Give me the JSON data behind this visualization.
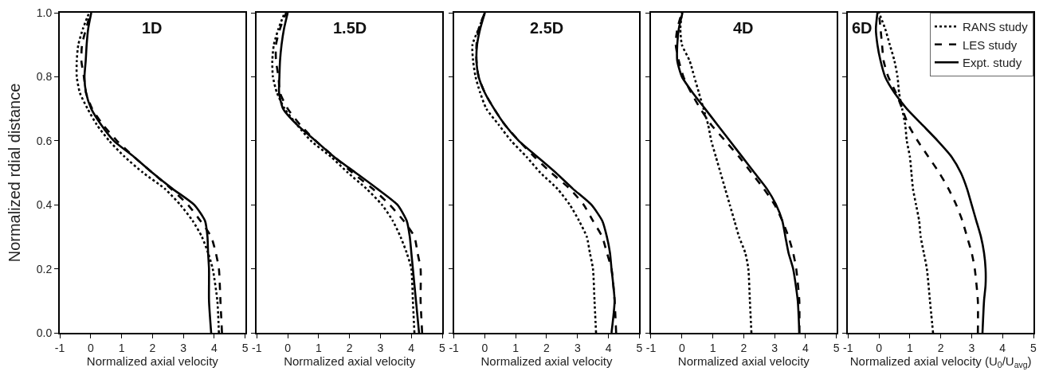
{
  "chart_data": [
    {
      "type": "line",
      "title": "1D",
      "xlabel": "Normalized axial velocity",
      "ylabel": "Normalized rdial distance",
      "xlim": [
        -1,
        5
      ],
      "xticks": [
        -1,
        0,
        1,
        2,
        3,
        4,
        5
      ],
      "ylim": [
        0,
        1
      ],
      "yticks": [
        {
          "value": 0,
          "label": "0.0"
        },
        0.2,
        0.4,
        0.6,
        0.8,
        {
          "value": 1,
          "label": "1.0"
        }
      ],
      "legend": false,
      "series": [
        {
          "color": "#000000",
          "line_style": "dotted",
          "x": [
            4.15,
            4.1,
            3.95,
            3.8,
            3.6,
            3.3,
            2.9,
            2.4,
            1.7,
            1.1,
            0.6,
            0.2,
            -0.1,
            -0.35,
            -0.45,
            -0.45,
            -0.4,
            -0.25,
            -0.05
          ],
          "values": [
            0,
            0.1,
            0.2,
            0.25,
            0.3,
            0.35,
            0.4,
            0.45,
            0.5,
            0.55,
            0.6,
            0.65,
            0.7,
            0.75,
            0.8,
            0.85,
            0.9,
            0.95,
            1.0
          ]
        },
        {
          "color": "#000000",
          "line_style": "dashed",
          "x": [
            4.25,
            4.2,
            4.15,
            4.05,
            3.9,
            3.55,
            3.15,
            2.6,
            2.0,
            1.4,
            0.85,
            0.4,
            0.05,
            -0.15,
            -0.22,
            -0.3,
            -0.28,
            -0.15,
            0.0
          ],
          "values": [
            0,
            0.1,
            0.2,
            0.25,
            0.3,
            0.35,
            0.4,
            0.45,
            0.5,
            0.55,
            0.6,
            0.65,
            0.7,
            0.75,
            0.8,
            0.85,
            0.9,
            0.95,
            1.0
          ]
        },
        {
          "color": "#000000",
          "line_style": "solid",
          "x": [
            3.9,
            3.83,
            3.83,
            3.8,
            3.78,
            3.7,
            3.35,
            2.65,
            2.0,
            1.4,
            0.75,
            0.34,
            0.02,
            -0.15,
            -0.2,
            -0.16,
            -0.13,
            -0.08,
            0.02
          ],
          "values": [
            0,
            0.1,
            0.2,
            0.25,
            0.3,
            0.35,
            0.4,
            0.45,
            0.5,
            0.55,
            0.6,
            0.65,
            0.7,
            0.75,
            0.8,
            0.85,
            0.9,
            0.95,
            1.0
          ]
        }
      ]
    },
    {
      "type": "line",
      "title": "1.5D",
      "xlabel": "Normalized axial velocity",
      "xlim": [
        -1,
        5
      ],
      "xticks": [
        -1,
        0,
        1,
        2,
        3,
        4,
        5
      ],
      "ylim": [
        0,
        1
      ],
      "yticks": [
        0.0,
        0.2,
        0.4,
        0.6,
        0.8,
        1.0
      ],
      "tick_labels": "x",
      "legend": false,
      "series": [
        {
          "color": "#000000",
          "line_style": "dotted",
          "x": [
            4.1,
            4.05,
            4.0,
            3.85,
            3.65,
            3.4,
            3.05,
            2.55,
            1.95,
            1.4,
            0.75,
            0.3,
            -0.1,
            -0.35,
            -0.48,
            -0.5,
            -0.45,
            -0.3,
            -0.1
          ],
          "values": [
            0,
            0.1,
            0.2,
            0.25,
            0.3,
            0.35,
            0.4,
            0.45,
            0.5,
            0.55,
            0.6,
            0.65,
            0.7,
            0.75,
            0.8,
            0.85,
            0.9,
            0.95,
            1.0
          ]
        },
        {
          "color": "#000000",
          "line_style": "dashed",
          "x": [
            4.35,
            4.3,
            4.3,
            4.2,
            4.1,
            3.75,
            3.3,
            2.75,
            2.1,
            1.5,
            0.9,
            0.4,
            0.0,
            -0.25,
            -0.3,
            -0.38,
            -0.38,
            -0.25,
            -0.05
          ],
          "values": [
            0,
            0.1,
            0.2,
            0.25,
            0.3,
            0.35,
            0.4,
            0.45,
            0.5,
            0.55,
            0.6,
            0.65,
            0.7,
            0.75,
            0.8,
            0.85,
            0.9,
            0.95,
            1.0
          ]
        },
        {
          "color": "#000000",
          "line_style": "solid",
          "x": [
            4.25,
            4.15,
            4.05,
            4.0,
            3.95,
            3.85,
            3.55,
            2.9,
            2.2,
            1.5,
            0.9,
            0.3,
            -0.15,
            -0.28,
            -0.27,
            -0.25,
            -0.2,
            -0.12,
            0.0
          ],
          "values": [
            0,
            0.1,
            0.2,
            0.25,
            0.3,
            0.35,
            0.4,
            0.45,
            0.5,
            0.55,
            0.6,
            0.65,
            0.7,
            0.75,
            0.8,
            0.85,
            0.9,
            0.95,
            1.0
          ]
        }
      ]
    },
    {
      "type": "line",
      "title": "2.5D",
      "xlabel": "Normalized axial velocity",
      "xlim": [
        -1,
        5
      ],
      "xticks": [
        -1,
        0,
        1,
        2,
        3,
        4,
        5
      ],
      "ylim": [
        0,
        1
      ],
      "yticks": [
        0.0,
        0.2,
        0.4,
        0.6,
        0.8,
        1.0
      ],
      "tick_labels": "x",
      "legend": false,
      "series": [
        {
          "color": "#000000",
          "line_style": "dotted",
          "x": [
            3.6,
            3.55,
            3.5,
            3.4,
            3.3,
            3.05,
            2.75,
            2.35,
            1.8,
            1.35,
            0.85,
            0.45,
            0.05,
            -0.15,
            -0.3,
            -0.38,
            -0.4,
            -0.2,
            0.0
          ],
          "values": [
            0,
            0.1,
            0.2,
            0.25,
            0.3,
            0.35,
            0.4,
            0.45,
            0.5,
            0.55,
            0.6,
            0.65,
            0.7,
            0.75,
            0.8,
            0.85,
            0.9,
            0.95,
            1.0
          ]
        },
        {
          "color": "#000000",
          "line_style": "dashed",
          "x": [
            4.25,
            4.2,
            4.1,
            3.95,
            3.8,
            3.5,
            3.2,
            2.75,
            2.15,
            1.6,
            1.1,
            0.65,
            0.3,
            0.0,
            -0.2,
            -0.27,
            -0.27,
            -0.2,
            0.0
          ],
          "values": [
            0,
            0.1,
            0.2,
            0.25,
            0.3,
            0.35,
            0.4,
            0.45,
            0.5,
            0.55,
            0.6,
            0.65,
            0.7,
            0.75,
            0.8,
            0.85,
            0.9,
            0.95,
            1.0
          ]
        },
        {
          "color": "#000000",
          "line_style": "solid",
          "x": [
            4.1,
            4.2,
            4.1,
            4.05,
            3.95,
            3.8,
            3.45,
            2.85,
            2.3,
            1.7,
            1.1,
            0.65,
            0.3,
            0.0,
            -0.2,
            -0.27,
            -0.25,
            -0.15,
            0.0
          ],
          "values": [
            0,
            0.1,
            0.2,
            0.25,
            0.3,
            0.35,
            0.4,
            0.45,
            0.5,
            0.55,
            0.6,
            0.65,
            0.7,
            0.75,
            0.8,
            0.85,
            0.9,
            0.95,
            1.0
          ]
        }
      ]
    },
    {
      "type": "line",
      "title": "4D",
      "xlabel": "Normalized axial velocity",
      "xlim": [
        -1,
        5
      ],
      "xticks": [
        -1,
        0,
        1,
        2,
        3,
        4,
        5
      ],
      "ylim": [
        0,
        1
      ],
      "yticks": [
        0.0,
        0.2,
        0.4,
        0.6,
        0.8,
        1.0
      ],
      "tick_labels": "x",
      "legend": false,
      "series": [
        {
          "color": "#000000",
          "line_style": "dotted",
          "x": [
            2.25,
            2.2,
            2.15,
            2.05,
            1.85,
            1.7,
            1.55,
            1.4,
            1.25,
            1.1,
            0.95,
            0.85,
            0.7,
            0.55,
            0.4,
            0.25,
            0.0,
            -0.05,
            0.0
          ],
          "values": [
            0,
            0.1,
            0.2,
            0.25,
            0.3,
            0.35,
            0.4,
            0.45,
            0.5,
            0.55,
            0.6,
            0.65,
            0.7,
            0.75,
            0.8,
            0.85,
            0.9,
            0.95,
            1.0
          ]
        },
        {
          "color": "#000000",
          "line_style": "dashed",
          "x": [
            3.8,
            3.8,
            3.7,
            3.6,
            3.45,
            3.25,
            3.0,
            2.65,
            2.25,
            1.85,
            1.4,
            0.95,
            0.6,
            0.3,
            0.05,
            -0.1,
            -0.2,
            -0.15,
            0.0
          ],
          "values": [
            0,
            0.1,
            0.2,
            0.25,
            0.3,
            0.35,
            0.4,
            0.45,
            0.5,
            0.55,
            0.6,
            0.65,
            0.7,
            0.75,
            0.8,
            0.85,
            0.9,
            0.95,
            1.0
          ]
        },
        {
          "color": "#000000",
          "line_style": "solid",
          "x": [
            3.8,
            3.75,
            3.6,
            3.45,
            3.35,
            3.25,
            3.05,
            2.75,
            2.35,
            1.95,
            1.55,
            1.15,
            0.75,
            0.35,
            0.0,
            -0.15,
            -0.15,
            -0.1,
            0.02
          ],
          "values": [
            0,
            0.1,
            0.2,
            0.25,
            0.3,
            0.35,
            0.4,
            0.45,
            0.5,
            0.55,
            0.6,
            0.65,
            0.7,
            0.75,
            0.8,
            0.85,
            0.9,
            0.95,
            1.0
          ]
        }
      ]
    },
    {
      "type": "line",
      "title": "6D",
      "xlabel": "Normalized axial velocity (U$_{0}$/U$_{avg}$)",
      "xlim": [
        -1,
        5
      ],
      "xticks": [
        -1,
        0,
        1,
        2,
        3,
        4,
        5
      ],
      "ylim": [
        0,
        1
      ],
      "yticks": [
        0.0,
        0.2,
        0.4,
        0.6,
        0.8,
        1.0
      ],
      "tick_labels": "x",
      "legend": "top right",
      "series": [
        {
          "name": "RANS study",
          "color": "#000000",
          "line_style": "dotted",
          "x": [
            1.75,
            1.65,
            1.55,
            1.45,
            1.35,
            1.3,
            1.2,
            1.1,
            1.05,
            1.0,
            0.9,
            0.85,
            0.75,
            0.65,
            0.6,
            0.5,
            0.35,
            0.2,
            0.0
          ],
          "values": [
            0,
            0.1,
            0.2,
            0.25,
            0.3,
            0.35,
            0.4,
            0.45,
            0.5,
            0.55,
            0.6,
            0.65,
            0.7,
            0.75,
            0.8,
            0.85,
            0.9,
            0.95,
            1.0
          ]
        },
        {
          "name": "LES study",
          "color": "#000000",
          "line_style": "dashed",
          "x": [
            3.2,
            3.2,
            3.1,
            3.0,
            2.85,
            2.7,
            2.5,
            2.25,
            1.95,
            1.6,
            1.25,
            0.95,
            0.75,
            0.55,
            0.3,
            0.15,
            0.1,
            0.05,
            0.0
          ],
          "values": [
            0,
            0.1,
            0.2,
            0.25,
            0.3,
            0.35,
            0.4,
            0.45,
            0.5,
            0.55,
            0.6,
            0.65,
            0.7,
            0.75,
            0.8,
            0.85,
            0.9,
            0.95,
            1.0
          ]
        },
        {
          "name": "Expt. study",
          "color": "#000000",
          "line_style": "solid",
          "x": [
            3.35,
            3.4,
            3.45,
            3.45,
            3.4,
            3.3,
            3.15,
            3.0,
            2.85,
            2.65,
            2.35,
            1.9,
            1.4,
            0.9,
            0.5,
            0.2,
            0.05,
            -0.05,
            -0.1,
            -0.05
          ],
          "values": [
            0,
            0.1,
            0.15,
            0.2,
            0.25,
            0.3,
            0.35,
            0.4,
            0.45,
            0.5,
            0.55,
            0.6,
            0.65,
            0.7,
            0.75,
            0.8,
            0.85,
            0.9,
            0.95,
            1.0
          ]
        }
      ]
    }
  ]
}
